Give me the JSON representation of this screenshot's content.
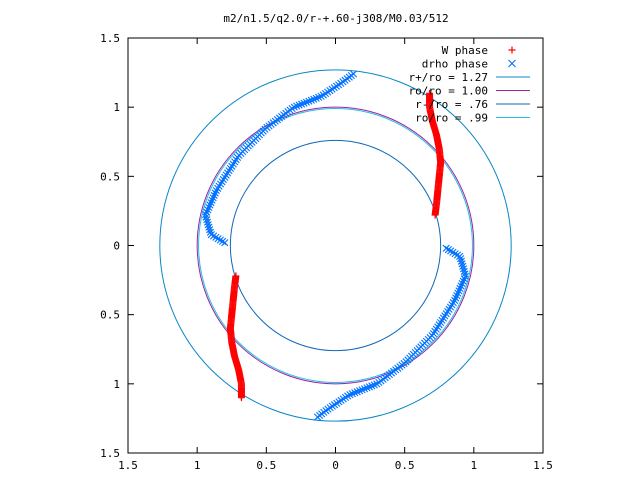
{
  "chart_data": {
    "type": "scatter",
    "title": "m2/n1.5/q2.0/r-+.60-j308/M0.03/512",
    "xlabel": "",
    "ylabel": "",
    "xlim": [
      -1.5,
      1.5
    ],
    "ylim": [
      -1.5,
      1.5
    ],
    "x_ticks": [
      -1.5,
      -1,
      -0.5,
      0,
      0.5,
      1,
      1.5
    ],
    "x_tick_labels": [
      "1.5",
      "1",
      "0.5",
      "0",
      "0.5",
      "1",
      "1.5"
    ],
    "y_ticks": [
      -1.5,
      -1,
      -0.5,
      0,
      0.5,
      1,
      1.5
    ],
    "y_tick_labels": [
      "1.5",
      "1",
      "0.5",
      "0",
      "0.5",
      "1",
      "1.5"
    ],
    "grid": false,
    "legend_position": "top-right",
    "series": [
      {
        "name": "W phase",
        "marker": "+",
        "color": "#ff0000",
        "arms": [
          [
            [
              0.68,
              1.1
            ],
            [
              0.68,
              1.0
            ],
            [
              0.7,
              0.9
            ],
            [
              0.73,
              0.8
            ],
            [
              0.75,
              0.7
            ],
            [
              0.76,
              0.6
            ],
            [
              0.75,
              0.5
            ],
            [
              0.74,
              0.4
            ],
            [
              0.73,
              0.3
            ],
            [
              0.72,
              0.22
            ]
          ],
          [
            [
              -0.68,
              -1.1
            ],
            [
              -0.68,
              -1.0
            ],
            [
              -0.7,
              -0.9
            ],
            [
              -0.73,
              -0.8
            ],
            [
              -0.75,
              -0.7
            ],
            [
              -0.76,
              -0.6
            ],
            [
              -0.75,
              -0.5
            ],
            [
              -0.74,
              -0.4
            ],
            [
              -0.73,
              -0.3
            ],
            [
              -0.72,
              -0.22
            ]
          ]
        ]
      },
      {
        "name": "drho phase",
        "marker": "x",
        "color": "#0070ff",
        "arms": [
          [
            [
              0.13,
              1.24
            ],
            [
              0.05,
              1.18
            ],
            [
              -0.1,
              1.08
            ],
            [
              -0.3,
              1.0
            ],
            [
              -0.5,
              0.85
            ],
            [
              -0.7,
              0.65
            ],
            [
              -0.86,
              0.4
            ],
            [
              -0.94,
              0.22
            ],
            [
              -0.9,
              0.08
            ],
            [
              -0.8,
              0.02
            ]
          ],
          [
            [
              -0.13,
              -1.24
            ],
            [
              -0.05,
              -1.18
            ],
            [
              0.1,
              -1.08
            ],
            [
              0.3,
              -1.0
            ],
            [
              0.5,
              -0.85
            ],
            [
              0.7,
              -0.65
            ],
            [
              0.86,
              -0.4
            ],
            [
              0.94,
              -0.22
            ],
            [
              0.9,
              -0.08
            ],
            [
              0.8,
              -0.02
            ]
          ]
        ]
      }
    ],
    "circles": [
      {
        "name": "r+/ro = 1.27",
        "r": 1.27,
        "color": "#0a87c8"
      },
      {
        "name": "ro/ro = 1.00",
        "r": 1.0,
        "color": "#a020a0"
      },
      {
        "name": "r-/ro = .76",
        "r": 0.76,
        "color": "#1068b8"
      },
      {
        "name": "ro/ro = .99",
        "r": 0.99,
        "color": "#20c0e8"
      }
    ],
    "legend": [
      {
        "label": "W phase",
        "symbol": "+",
        "color": "#ff0000"
      },
      {
        "label": "drho phase",
        "symbol": "x",
        "color": "#0070ff"
      },
      {
        "label": "r+/ro = 1.27",
        "symbol": "line",
        "color": "#0a87c8"
      },
      {
        "label": "ro/ro = 1.00",
        "symbol": "line",
        "color": "#a020a0"
      },
      {
        "label": "r-/ro = .76",
        "symbol": "line",
        "color": "#1068b8"
      },
      {
        "label": "ro/ro = .99",
        "symbol": "line",
        "color": "#20c0e8"
      }
    ]
  }
}
